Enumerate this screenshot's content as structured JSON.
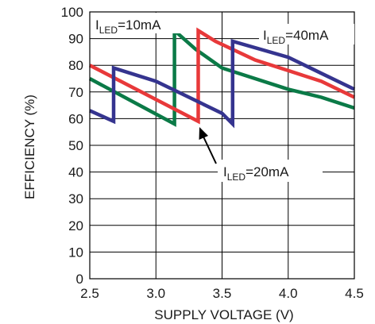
{
  "chart_data": {
    "type": "line",
    "xlabel": "SUPPLY VOLTAGE (V)",
    "ylabel": "EFFICIENCY (%)",
    "xlim": [
      2.5,
      4.5
    ],
    "ylim": [
      0,
      100
    ],
    "xticks": [
      2.5,
      3.0,
      3.5,
      4.0,
      4.5
    ],
    "xtick_labels": [
      "2.5",
      "3.0",
      "3.5",
      "4.0",
      "4.5"
    ],
    "yticks": [
      0,
      10,
      20,
      30,
      40,
      50,
      60,
      70,
      80,
      90,
      100
    ],
    "ytick_labels": [
      "0",
      "10",
      "20",
      "30",
      "40",
      "50",
      "60",
      "70",
      "80",
      "90",
      "100"
    ],
    "grid": true,
    "series": [
      {
        "name": "ILED=10mA",
        "color": "#0b7a47",
        "x": [
          2.5,
          3.14,
          3.14,
          3.3,
          3.5,
          3.75,
          4.0,
          4.25,
          4.5
        ],
        "y": [
          75,
          58,
          93,
          86,
          79,
          75,
          71,
          68,
          64
        ]
      },
      {
        "name": "ILED=20mA",
        "color": "#e8393a",
        "x": [
          2.5,
          3.32,
          3.32,
          3.45,
          3.75,
          4.0,
          4.25,
          4.5
        ],
        "y": [
          80,
          59,
          93,
          89,
          82,
          78,
          74,
          68
        ]
      },
      {
        "name": "ILED=40mA",
        "color": "#35348f",
        "x": [
          2.5,
          2.68,
          2.68,
          3.0,
          3.25,
          3.5,
          3.58,
          3.58,
          4.0,
          4.25,
          4.5
        ],
        "y": [
          63,
          59,
          79,
          74,
          68,
          62,
          58,
          89,
          83,
          77,
          71
        ]
      }
    ],
    "annotations": [
      {
        "main": "I",
        "sub": "LED",
        "rest": "=10mA"
      },
      {
        "main": "I",
        "sub": "LED",
        "rest": "=40mA"
      },
      {
        "main": "I",
        "sub": "LED",
        "rest": "=20mA"
      }
    ]
  }
}
